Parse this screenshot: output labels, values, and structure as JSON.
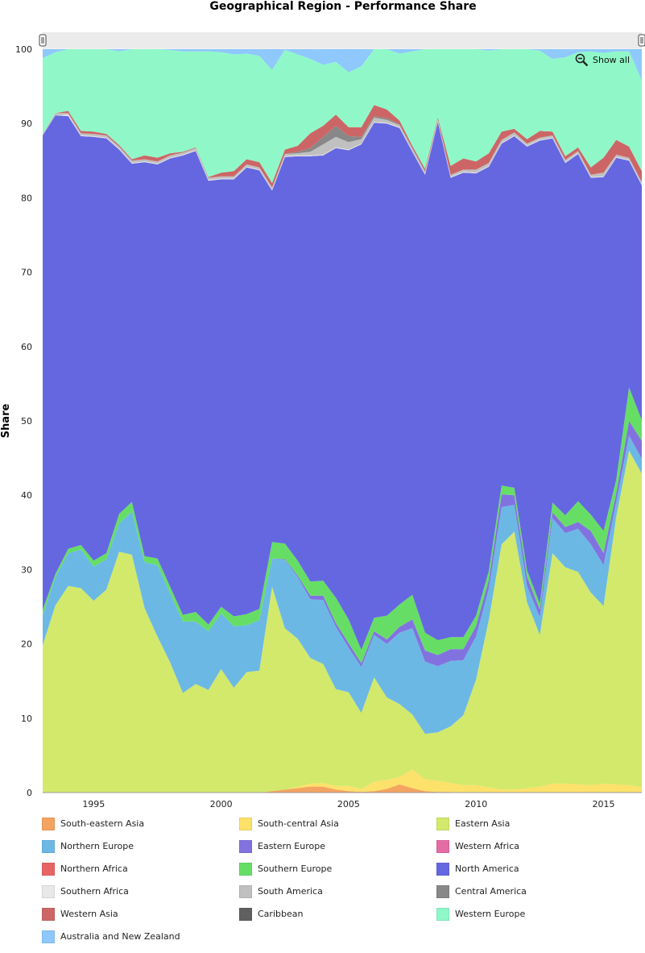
{
  "chart_data": {
    "type": "area",
    "stacked": true,
    "title": "Geographical Region - Performance Share",
    "ylabel": "Share",
    "xlabel": "",
    "ylim": [
      0,
      100
    ],
    "xlim": [
      1993,
      2016.5
    ],
    "x_ticks": [
      1995,
      2000,
      2005,
      2010,
      2015
    ],
    "y_ticks": [
      0,
      10,
      20,
      30,
      40,
      50,
      60,
      70,
      80,
      90,
      100
    ],
    "grid": true,
    "legend_position": "bottom",
    "x": [
      1993,
      1993.5,
      1994,
      1994.5,
      1995,
      1995.5,
      1996,
      1996.5,
      1997,
      1997.5,
      1998,
      1998.5,
      1999,
      1999.5,
      2000,
      2000.5,
      2001,
      2001.5,
      2002,
      2002.5,
      2003,
      2003.5,
      2004,
      2004.5,
      2005,
      2005.5,
      2006,
      2006.5,
      2007,
      2007.5,
      2008,
      2008.5,
      2009,
      2009.5,
      2010,
      2010.5,
      2011,
      2011.5,
      2012,
      2012.5,
      2013,
      2013.5,
      2014,
      2014.5,
      2015,
      2015.5,
      2016,
      2016.5
    ],
    "series": [
      {
        "name": "South-eastern Asia",
        "color": "#f4a460",
        "values": [
          0,
          0,
          0,
          0,
          0,
          0,
          0,
          0,
          0,
          0,
          0,
          0,
          0,
          0,
          0,
          0,
          0,
          0,
          0.2,
          0.4,
          0.6,
          0.8,
          0.8,
          0.4,
          0.2,
          0.1,
          0.2,
          0.5,
          1.1,
          0.6,
          0.2,
          0.1,
          0.1,
          0,
          0,
          0,
          0,
          0,
          0,
          0,
          0,
          0,
          0,
          0,
          0,
          0,
          0,
          0
        ]
      },
      {
        "name": "South-central Asia",
        "color": "#fce16a",
        "values": [
          0,
          0,
          0,
          0,
          0,
          0,
          0,
          0,
          0,
          0,
          0,
          0,
          0,
          0,
          0,
          0,
          0,
          0,
          0,
          0,
          0.2,
          0.4,
          0.5,
          0.5,
          0.7,
          0.4,
          1.3,
          1.2,
          1.0,
          2.5,
          1.6,
          1.5,
          1.2,
          1.0,
          1.0,
          0.7,
          0.4,
          0.4,
          0.6,
          0.8,
          1.2,
          1.2,
          1.1,
          1.0,
          1.2,
          1.1,
          1.0,
          0.7
        ]
      },
      {
        "name": "Eastern Asia",
        "color": "#d2e96c",
        "values": [
          19.8,
          25.2,
          27.8,
          27.5,
          25.8,
          27.3,
          32.4,
          32.0,
          24.8,
          21.0,
          17.5,
          13.4,
          14.6,
          13.8,
          16.6,
          14.1,
          16.2,
          16.4,
          27.5,
          21.7,
          19.9,
          16.9,
          16.0,
          13.0,
          12.6,
          10.2,
          14.0,
          11.1,
          9.8,
          7.4,
          6.1,
          6.5,
          7.6,
          9.4,
          14.2,
          22.5,
          33.0,
          34.7,
          25.0,
          20.4,
          31.0,
          29.1,
          28.6,
          25.9,
          23.9,
          36.0,
          45.0,
          42.2
        ]
      },
      {
        "name": "Northern Europe",
        "color": "#6cb8e4",
        "values": [
          4.0,
          3.8,
          4.4,
          5.2,
          4.6,
          4.1,
          3.8,
          5.8,
          6.2,
          9.6,
          9.3,
          9.6,
          8.4,
          7.9,
          7.5,
          8.3,
          6.3,
          6.8,
          3.8,
          9.2,
          8.3,
          7.9,
          8.6,
          8.4,
          6.0,
          6.2,
          5.7,
          7.2,
          9.6,
          11.6,
          9.7,
          8.9,
          8.8,
          7.4,
          5.8,
          4.2,
          5.0,
          3.6,
          2.2,
          2.4,
          4.7,
          4.6,
          5.8,
          6.5,
          5.5,
          2.0,
          2.0,
          2.0
        ]
      },
      {
        "name": "Eastern Europe",
        "color": "#8272e0",
        "values": [
          0,
          0,
          0,
          0,
          0,
          0,
          0,
          0,
          0,
          0,
          0,
          0,
          0,
          0,
          0,
          0,
          0,
          0,
          0,
          0.1,
          0.2,
          0.5,
          0.6,
          0.5,
          0.6,
          0.5,
          0.5,
          0.6,
          0.8,
          1.2,
          1.5,
          1.5,
          1.6,
          1.5,
          1.4,
          1.2,
          1.7,
          1.3,
          1.2,
          1.0,
          0.8,
          0.8,
          0.9,
          1.8,
          1.6,
          1.2,
          2.0,
          2.4
        ]
      },
      {
        "name": "Western Africa",
        "color": "#e46ca4",
        "values": [
          0,
          0,
          0,
          0,
          0,
          0,
          0,
          0,
          0,
          0,
          0,
          0,
          0,
          0,
          0,
          0,
          0,
          0,
          0,
          0,
          0,
          0,
          0,
          0,
          0,
          0,
          0,
          0,
          0,
          0,
          0,
          0,
          0,
          0,
          0,
          0,
          0,
          0,
          0,
          0,
          0,
          0,
          0,
          0,
          0,
          0,
          0,
          0
        ]
      },
      {
        "name": "Northern Africa",
        "color": "#e86464",
        "values": [
          0,
          0,
          0,
          0,
          0,
          0,
          0,
          0,
          0,
          0,
          0,
          0,
          0,
          0,
          0,
          0,
          0,
          0,
          0,
          0,
          0,
          0,
          0,
          0,
          0,
          0,
          0,
          0,
          0,
          0,
          0,
          0,
          0,
          0,
          0,
          0,
          0,
          0,
          0,
          0,
          0,
          0,
          0,
          0,
          0,
          0,
          0,
          0
        ]
      },
      {
        "name": "Southern Europe",
        "color": "#66de66",
        "values": [
          0.8,
          0.4,
          0.6,
          0.6,
          0.8,
          0.8,
          1.3,
          1.3,
          0.8,
          0.9,
          0.9,
          0.9,
          1.3,
          0.9,
          0.9,
          1.3,
          1.5,
          1.5,
          2.2,
          2.1,
          2.0,
          1.9,
          2.0,
          3.4,
          3.2,
          1.8,
          1.8,
          3.2,
          3.0,
          3.3,
          2.4,
          2.0,
          1.6,
          1.6,
          1.4,
          1.2,
          1.2,
          1.0,
          0.9,
          0.8,
          1.3,
          1.6,
          2.8,
          2.2,
          3.0,
          1.8,
          4.5,
          2.8
        ]
      },
      {
        "name": "North America",
        "color": "#6567e0",
        "values": [
          63.8,
          61.7,
          58.2,
          55.0,
          57.0,
          55.8,
          49.0,
          45.5,
          53.0,
          53.0,
          57.6,
          61.8,
          62.0,
          59.7,
          57.5,
          58.8,
          60.1,
          59.0,
          47.3,
          52.0,
          54.4,
          57.2,
          57.2,
          60.5,
          63.1,
          68.0,
          66.6,
          66.2,
          64.1,
          59.6,
          61.6,
          69.7,
          61.8,
          62.5,
          59.5,
          54.4,
          46.0,
          47.3,
          57.0,
          62.3,
          49.0,
          47.4,
          46.7,
          45.3,
          47.6,
          43.3,
          30.5,
          31.6
        ]
      },
      {
        "name": "Southern Africa",
        "color": "#e8e8e8",
        "values": [
          0,
          0,
          0.2,
          0.1,
          0.1,
          0.1,
          0.1,
          0.1,
          0.1,
          0.1,
          0.1,
          0.1,
          0.1,
          0.1,
          0.1,
          0.1,
          0.1,
          0.1,
          0.1,
          0.1,
          0.1,
          0.1,
          0.1,
          0.1,
          0.1,
          0.1,
          0.1,
          0.1,
          0.1,
          0.1,
          0.1,
          0.1,
          0.1,
          0.1,
          0.1,
          0.1,
          0.1,
          0.1,
          0.1,
          0.1,
          0.1,
          0.1,
          0.1,
          0.1,
          0.1,
          0.1,
          0.1,
          0.1
        ]
      },
      {
        "name": "South America",
        "color": "#c0c0c0",
        "values": [
          0.2,
          0.3,
          0.2,
          0.3,
          0.3,
          0.3,
          0.3,
          0.3,
          0.3,
          0.3,
          0.3,
          0.3,
          0.3,
          0.3,
          0.3,
          0.3,
          0.3,
          0.3,
          0.3,
          0.3,
          0.3,
          0.5,
          1.4,
          1.4,
          1.0,
          0.6,
          0.6,
          0.4,
          0.3,
          0.3,
          0.3,
          0.3,
          0.3,
          0.3,
          0.4,
          0.4,
          0.4,
          0.4,
          0.3,
          0.3,
          0.3,
          0.3,
          0.3,
          0.3,
          0.5,
          0.3,
          0.3,
          0.3
        ]
      },
      {
        "name": "Central America",
        "color": "#888888",
        "values": [
          0,
          0,
          0,
          0,
          0,
          0,
          0,
          0,
          0,
          0,
          0,
          0,
          0,
          0,
          0,
          0,
          0,
          0,
          0,
          0,
          0.2,
          0.5,
          1.0,
          1.5,
          0.8,
          0.3,
          0.2,
          0.2,
          0.1,
          0.1,
          0.1,
          0,
          0,
          0,
          0,
          0,
          0,
          0,
          0,
          0,
          0,
          0,
          0,
          0,
          0,
          0,
          0,
          0
        ]
      },
      {
        "name": "Western Asia",
        "color": "#cc6666",
        "values": [
          0,
          0,
          0.3,
          0.3,
          0.3,
          0.2,
          0.2,
          0.2,
          0.5,
          0.5,
          0.3,
          0.1,
          0.1,
          0.1,
          0.5,
          0.7,
          0.7,
          0.7,
          0.6,
          0.6,
          0.8,
          2.0,
          1.5,
          1.5,
          1.2,
          1.3,
          1.5,
          1.2,
          0.5,
          0.3,
          0.3,
          0.2,
          1.2,
          1.5,
          1.1,
          1.3,
          1.1,
          0.5,
          0.6,
          0.9,
          0.5,
          0.5,
          0.5,
          1.0,
          2.0,
          2.0,
          1.5,
          1.5
        ]
      },
      {
        "name": "Caribbean",
        "color": "#606060",
        "values": [
          0,
          0,
          0,
          0,
          0,
          0,
          0,
          0,
          0,
          0,
          0,
          0,
          0,
          0,
          0,
          0,
          0,
          0,
          0,
          0,
          0,
          0,
          0,
          0,
          0,
          0,
          0,
          0,
          0,
          0,
          0,
          0,
          0,
          0,
          0,
          0,
          0,
          0,
          0,
          0,
          0,
          0,
          0,
          0,
          0,
          0,
          0,
          0
        ]
      },
      {
        "name": "Western Europe",
        "color": "#90f8c8",
        "values": [
          10.2,
          8.2,
          8.6,
          11.1,
          11.6,
          11.4,
          12.6,
          14.8,
          14.8,
          14.6,
          13.9,
          13.5,
          12.9,
          16.9,
          16.2,
          15.7,
          14.2,
          14.3,
          15.2,
          13.4,
          12.3,
          10.0,
          8.2,
          7.1,
          7.4,
          8.2,
          7.8,
          8.8,
          9.0,
          12.7,
          16.3,
          11.0,
          16.1,
          15.9,
          15.6,
          13.8,
          11.5,
          10.7,
          12.1,
          10.8,
          9.8,
          13.3,
          12.8,
          15.6,
          14.1,
          11.9,
          12.8,
          12.2
        ]
      },
      {
        "name": "Australia and New Zealand",
        "color": "#8ec8fc",
        "values": [
          1.2,
          0.9,
          0.5,
          0.7,
          0.1,
          0.2,
          0.4,
          0.8,
          0.3,
          0.4,
          0.3,
          0.4,
          0.6,
          0.9,
          0.6,
          1.0,
          0.8,
          1.1,
          0.7,
          0.6,
          1.4,
          1.7,
          1.7,
          1.1,
          1.5,
          1.8,
          1.1,
          0.6,
          0.6,
          0.6,
          0.3,
          0.7,
          0.8,
          0.7,
          0.8,
          1.2,
          0.5,
          0.8,
          1.2,
          1.2,
          0.6,
          0.8,
          0.8,
          1.0,
          0.8,
          1.1,
          0.9,
          0.6
        ]
      }
    ]
  },
  "show_all_label": "Show all",
  "colors": {
    "background": "#ffffff",
    "gridline": "#e4e4e4",
    "scrollbar": "#ebebeb"
  }
}
